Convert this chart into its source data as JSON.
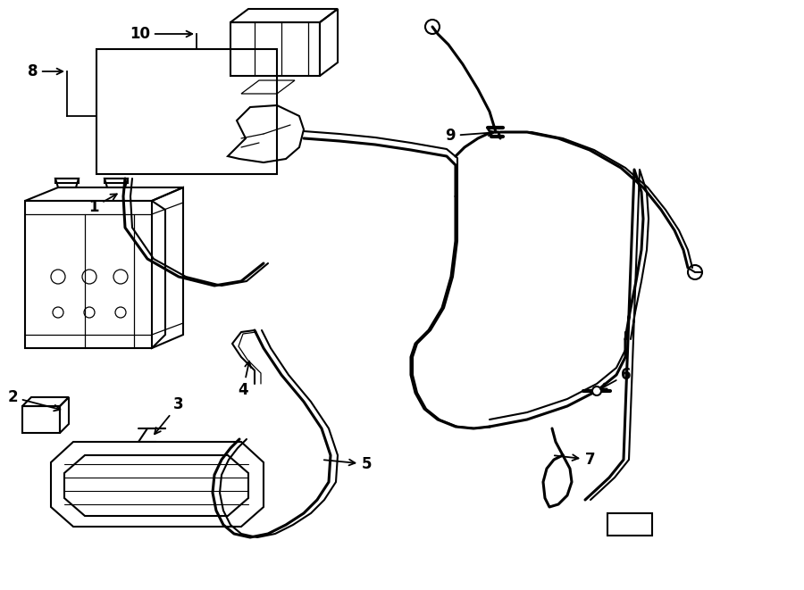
{
  "background_color": "#ffffff",
  "line_color": "#000000",
  "lw": 1.5,
  "lw_thin": 0.9,
  "lw_thick": 2.2,
  "label_fontsize": 12,
  "figsize": [
    9.0,
    6.61
  ],
  "dpi": 100,
  "xlim": [
    0,
    900
  ],
  "ylim": [
    0,
    661
  ]
}
